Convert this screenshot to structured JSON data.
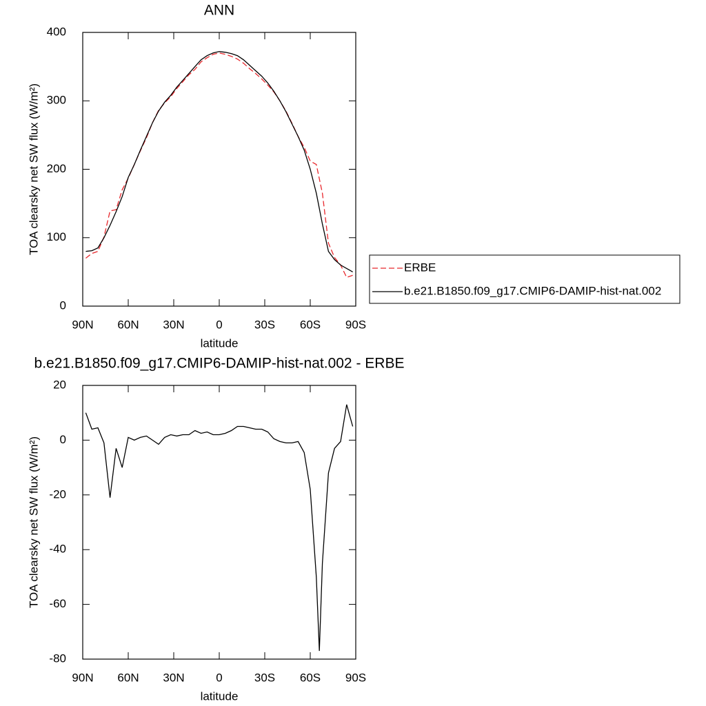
{
  "chart_data": [
    {
      "type": "line",
      "title": "ANN",
      "xlabel": "latitude",
      "ylabel": "TOA clearsky net SW flux (W/m²)",
      "x": [
        88,
        84,
        80,
        76,
        72,
        68,
        64,
        60,
        56,
        52,
        48,
        44,
        40,
        36,
        32,
        28,
        24,
        20,
        16,
        12,
        8,
        4,
        0,
        -4,
        -8,
        -12,
        -16,
        -20,
        -24,
        -28,
        -32,
        -36,
        -40,
        -44,
        -48,
        -52,
        -56,
        -60,
        -64,
        -68,
        -72,
        -76,
        -80,
        -84,
        -88
      ],
      "series": [
        {
          "name": "ERBE",
          "color": "#e8262b",
          "line_style": "dashed",
          "values": [
            70,
            77,
            80,
            101,
            139,
            141,
            170,
            187,
            207,
            227,
            246,
            268,
            286,
            297,
            306,
            318,
            328,
            338,
            346,
            357,
            363,
            368,
            370,
            368,
            365,
            361,
            355,
            347,
            340,
            332,
            323,
            313,
            300,
            285,
            267,
            248,
            232,
            212,
            207,
            165,
            92,
            71,
            60,
            42,
            45
          ]
        },
        {
          "name": "b.e21.B1850.f09_g17.CMIP6-DAMIP-hist-nat.002",
          "color": "#000000",
          "line_style": "solid",
          "values": [
            80,
            81,
            85,
            100,
            118,
            138,
            160,
            188,
            207,
            228,
            248,
            268,
            285,
            298,
            308,
            320,
            330,
            340,
            350,
            360,
            366,
            370,
            372,
            371,
            369,
            366,
            360,
            352,
            344,
            336,
            326,
            314,
            300,
            284,
            266,
            248,
            228,
            200,
            165,
            120,
            80,
            68,
            60,
            55,
            50
          ]
        }
      ],
      "xlim": [
        90,
        -90
      ],
      "xticks": [
        {
          "value": 90,
          "label": "90N"
        },
        {
          "value": 60,
          "label": "60N"
        },
        {
          "value": 30,
          "label": "30N"
        },
        0,
        {
          "value": -30,
          "label": "30S"
        },
        {
          "value": -60,
          "label": "60S"
        },
        {
          "value": -90,
          "label": "90S"
        }
      ],
      "ylim": [
        0,
        400
      ],
      "yticks": [
        0,
        100,
        200,
        300,
        400
      ],
      "legend": "right"
    },
    {
      "type": "line",
      "title": "b.e21.B1850.f09_g17.CMIP6-DAMIP-hist-nat.002 - ERBE",
      "xlabel": "latitude",
      "ylabel": "TOA clearsky net SW flux (W/m²)",
      "x": [
        88,
        84,
        80,
        76,
        72,
        68,
        64,
        60,
        56,
        52,
        48,
        44,
        40,
        36,
        32,
        28,
        24,
        20,
        16,
        12,
        8,
        4,
        0,
        -4,
        -8,
        -12,
        -16,
        -20,
        -24,
        -28,
        -32,
        -36,
        -40,
        -44,
        -48,
        -52,
        -56,
        -60,
        -64,
        -66,
        -68,
        -72,
        -76,
        -80,
        -84,
        -88
      ],
      "values": [
        10,
        4,
        4.5,
        -1,
        -21,
        -3,
        -10,
        1,
        0,
        1,
        1.5,
        0,
        -1.5,
        1,
        2,
        1.5,
        2,
        2,
        3.5,
        2.5,
        3,
        2,
        2,
        2.5,
        3.5,
        5,
        5,
        4.5,
        4,
        4,
        3,
        0.5,
        -0.5,
        -1,
        -1,
        -0.5,
        -4.5,
        -18,
        -50,
        -77,
        -45,
        -12,
        -3,
        -0.5,
        13,
        5
      ],
      "color": "#000000",
      "xlim": [
        90,
        -90
      ],
      "xticks": [
        {
          "value": 90,
          "label": "90N"
        },
        {
          "value": 60,
          "label": "60N"
        },
        {
          "value": 30,
          "label": "30N"
        },
        0,
        {
          "value": -30,
          "label": "30S"
        },
        {
          "value": -60,
          "label": "60S"
        },
        {
          "value": -90,
          "label": "90S"
        }
      ],
      "ylim": [
        -80,
        20
      ],
      "yticks": [
        -80,
        -60,
        -40,
        -20,
        0,
        20
      ]
    }
  ]
}
